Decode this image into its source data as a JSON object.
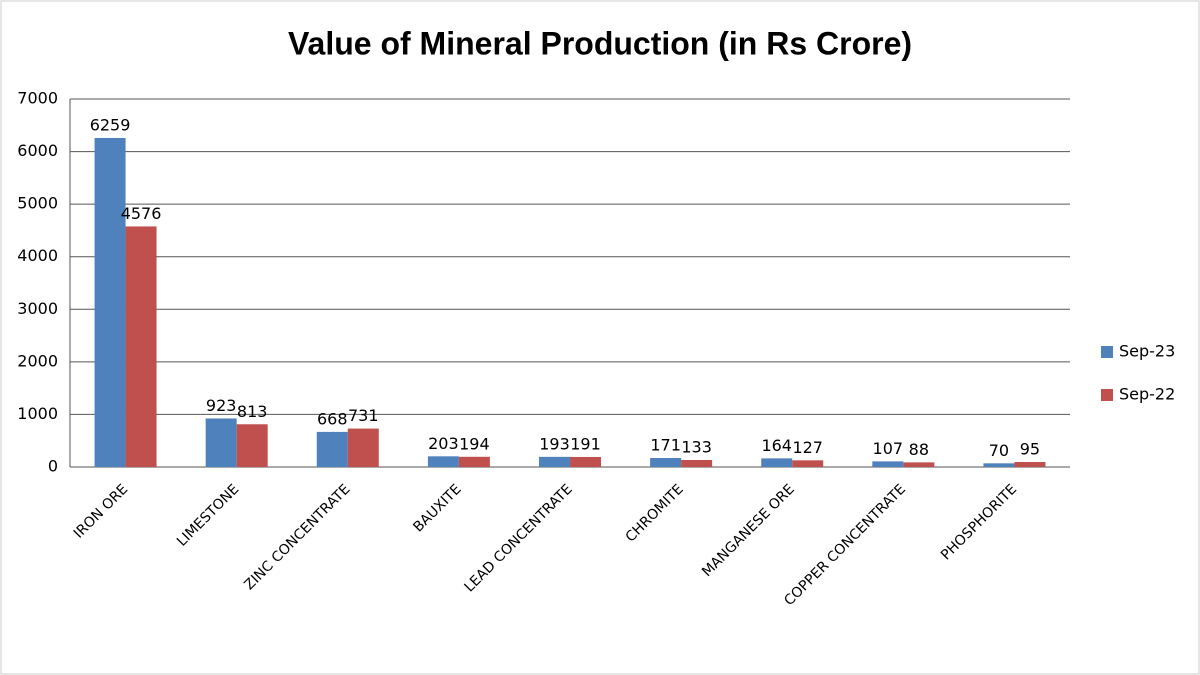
{
  "chart_data": {
    "type": "bar",
    "title": "Value of Mineral Production (in Rs Crore)",
    "categories": [
      "IRON ORE",
      "LIMESTONE",
      "ZINC CONCENTRATE",
      "BAUXITE",
      "LEAD CONCENTRATE",
      "CHROMITE",
      "MANGANESE ORE",
      "COPPER CONCENTRATE",
      "PHOSPHORITE"
    ],
    "series": [
      {
        "name": "Sep-23",
        "color": "#4f81bd",
        "values": [
          6259,
          923,
          668,
          203,
          193,
          171,
          164,
          107,
          70
        ]
      },
      {
        "name": "Sep-22",
        "color": "#c0504d",
        "values": [
          4576,
          813,
          731,
          194,
          191,
          133,
          127,
          88,
          95
        ]
      }
    ],
    "ylim": [
      0,
      7000
    ],
    "yticks": [
      0,
      1000,
      2000,
      3000,
      4000,
      5000,
      6000,
      7000
    ],
    "grid": true,
    "legend": "right"
  }
}
